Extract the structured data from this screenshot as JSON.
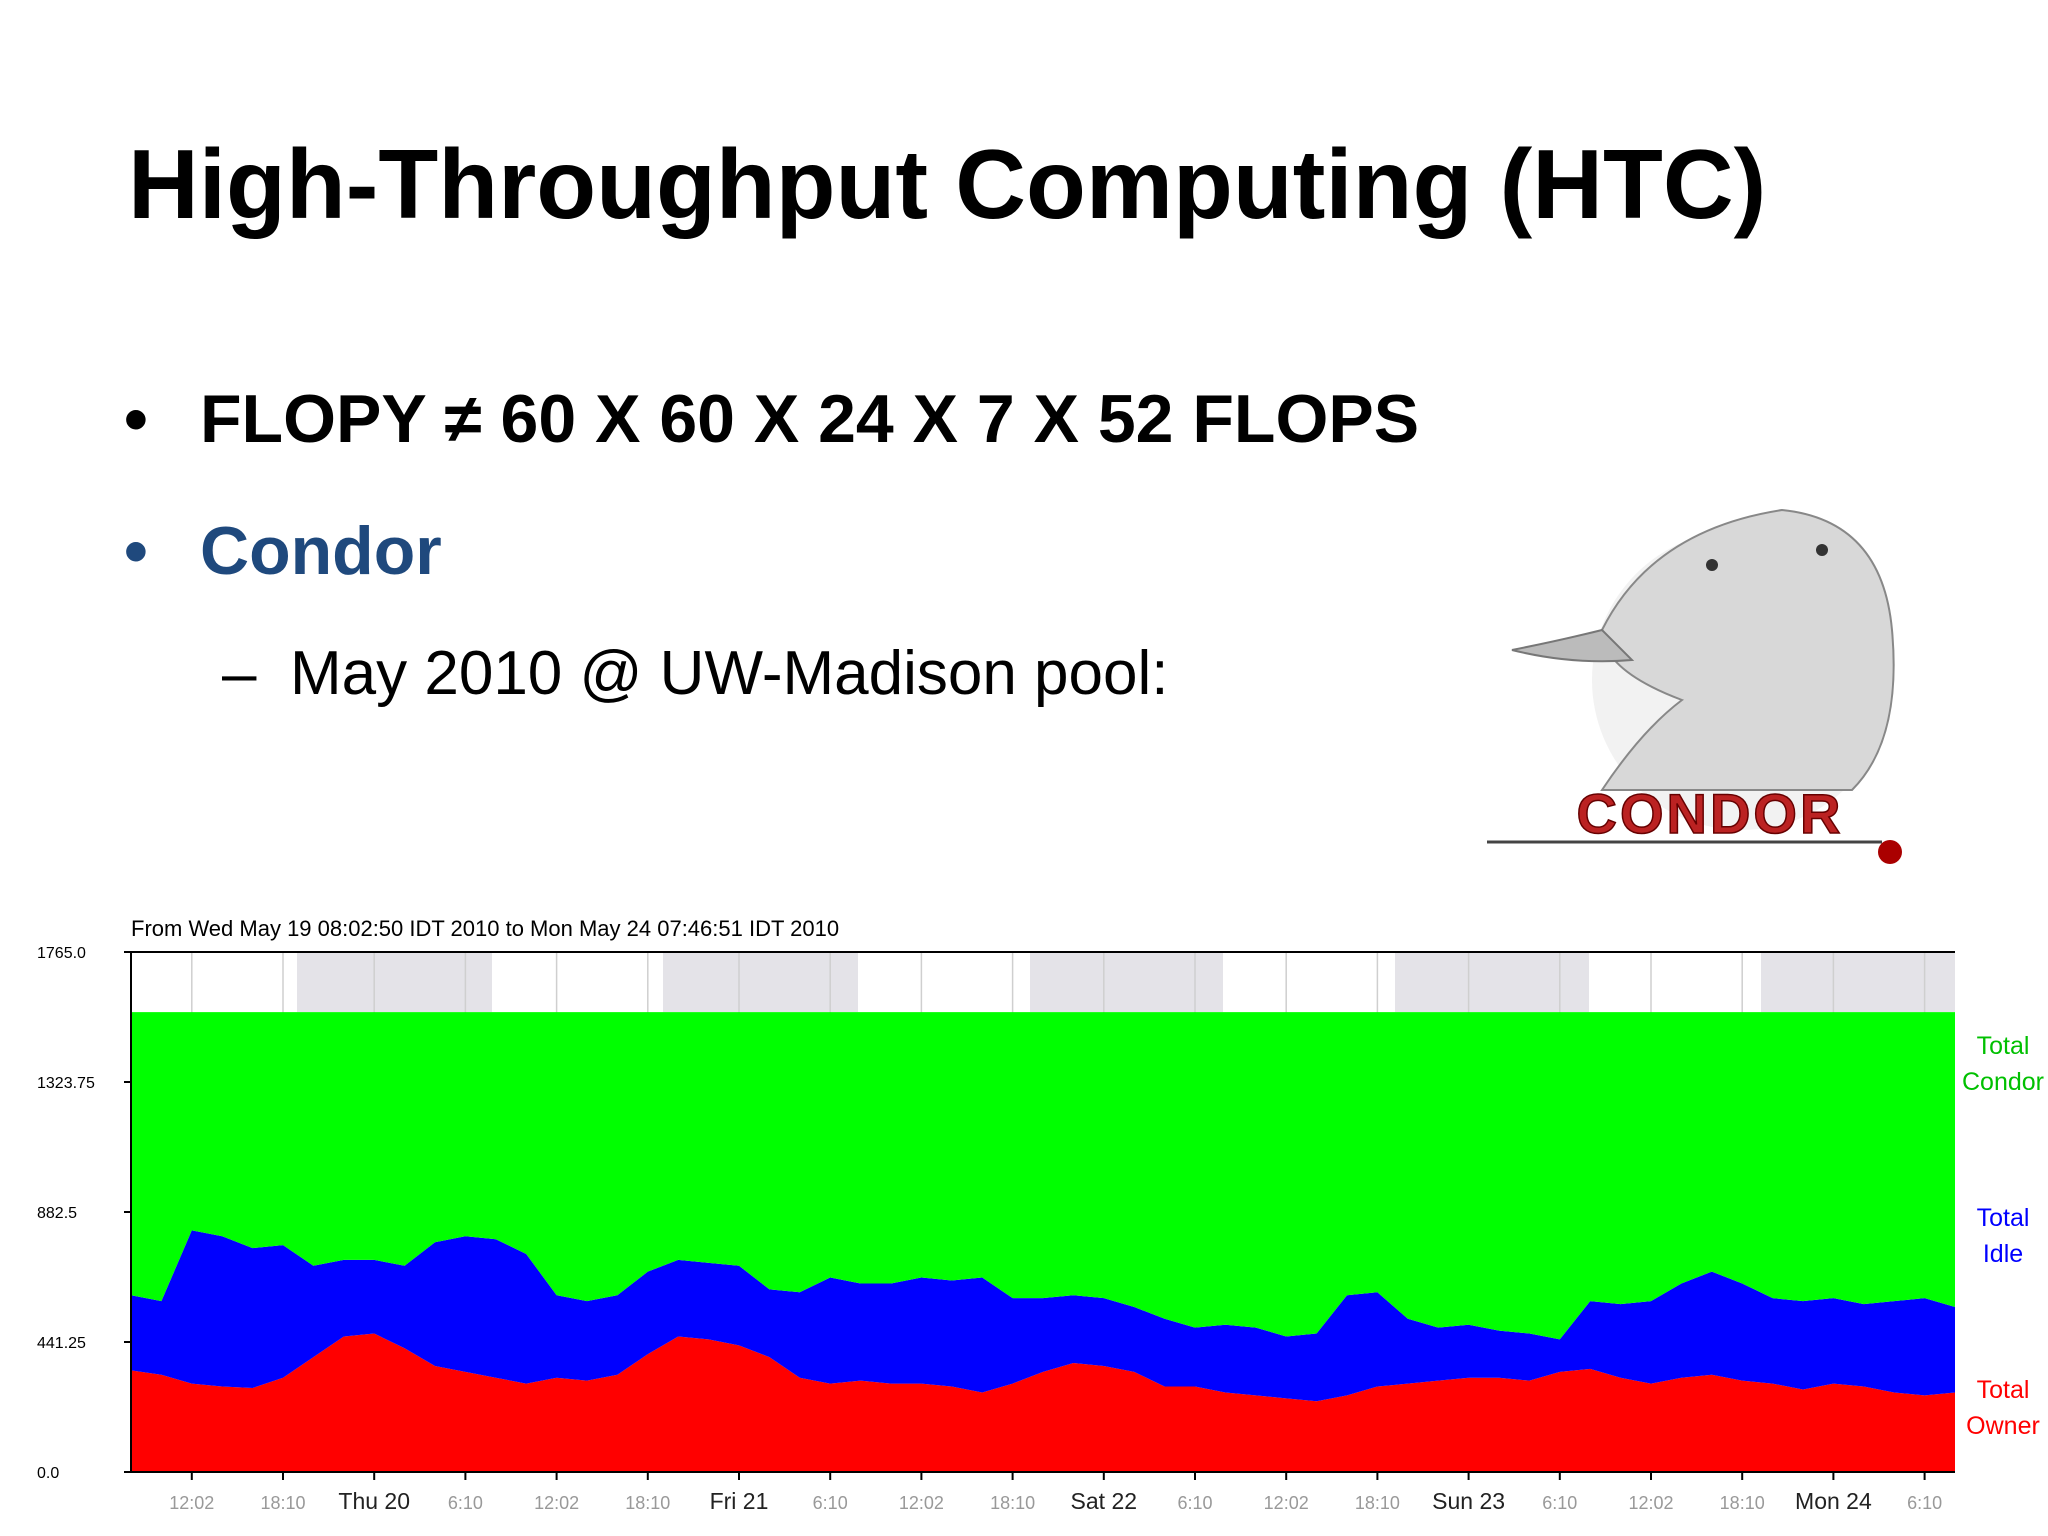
{
  "header": {
    "title": "High-Throughput Computing (HTC)"
  },
  "bullets": [
    {
      "marker": "•",
      "text": "FLOPY ≠ 60 X 60 X 24 X 7 X 52 FLOPS"
    },
    {
      "marker": "•",
      "text": "Condor"
    },
    {
      "marker": "–",
      "text": "May 2010 @ UW-Madison pool:"
    }
  ],
  "logo": {
    "text": "CONDOR"
  },
  "chart_data": {
    "type": "stacked-area",
    "subtitle": "From Wed May 19 08:02:50 IDT 2010 to Mon May 24 07:46:51 IDT 2010",
    "categories": [
      null,
      null,
      "12:02",
      null,
      null,
      "18:10",
      null,
      null,
      "Thu 20",
      null,
      null,
      "6:10",
      null,
      null,
      "12:02",
      null,
      null,
      "18:10",
      null,
      null,
      "Fri 21",
      null,
      null,
      "6:10",
      null,
      null,
      "12:02",
      null,
      null,
      "18:10",
      null,
      null,
      "Sat 22",
      null,
      null,
      "6:10",
      null,
      null,
      "12:02",
      null,
      null,
      "18:10",
      null,
      null,
      "Sun 23",
      null,
      null,
      "6:10",
      null,
      null,
      "12:02",
      null,
      null,
      "18:10",
      null,
      null,
      "Mon 24",
      null,
      null,
      "6:10",
      null
    ],
    "series": [
      {
        "name": "Total Condor",
        "color": "#00ff00",
        "values": [
          961,
          981,
          741,
          761,
          801,
          791,
          861,
          841,
          841,
          861,
          781,
          761,
          771,
          821,
          961,
          981,
          961,
          881,
          841,
          851,
          861,
          941,
          951,
          901,
          921,
          921,
          901,
          911,
          901,
          971,
          971,
          961,
          971,
          1001,
          1041,
          1071,
          1061,
          1071,
          1101,
          1091,
          961,
          951,
          1041,
          1071,
          1061,
          1081,
          1091,
          1111,
          981,
          991,
          981,
          921,
          881,
          921,
          971,
          981,
          971,
          991,
          981,
          971,
          1001
        ]
      },
      {
        "name": "Total Idle",
        "color": "#0000ff",
        "values": [
          255,
          250,
          520,
          510,
          475,
          450,
          310,
          260,
          250,
          280,
          420,
          460,
          470,
          440,
          280,
          270,
          270,
          280,
          260,
          260,
          270,
          230,
          290,
          360,
          330,
          340,
          360,
          360,
          390,
          290,
          250,
          230,
          230,
          220,
          230,
          200,
          230,
          230,
          210,
          230,
          340,
          320,
          220,
          180,
          180,
          160,
          160,
          110,
          230,
          250,
          280,
          320,
          350,
          330,
          290,
          300,
          290,
          280,
          310,
          330,
          290
        ]
      },
      {
        "name": "Total Owner",
        "color": "#ff0000",
        "values": [
          345,
          330,
          300,
          290,
          285,
          320,
          390,
          460,
          470,
          420,
          360,
          340,
          320,
          300,
          320,
          310,
          330,
          400,
          460,
          450,
          430,
          390,
          320,
          300,
          310,
          300,
          300,
          290,
          270,
          300,
          340,
          370,
          360,
          340,
          290,
          290,
          270,
          260,
          250,
          240,
          260,
          290,
          300,
          310,
          320,
          320,
          310,
          340,
          350,
          320,
          300,
          320,
          330,
          310,
          300,
          280,
          300,
          290,
          270,
          260,
          270
        ]
      }
    ],
    "ylim": [
      0,
      1765
    ],
    "yticks": [
      {
        "value": 0,
        "label": "0.0"
      },
      441.25,
      882.5,
      1323.75,
      {
        "value": 1765,
        "label": "1765.0"
      }
    ],
    "grid": true
  }
}
